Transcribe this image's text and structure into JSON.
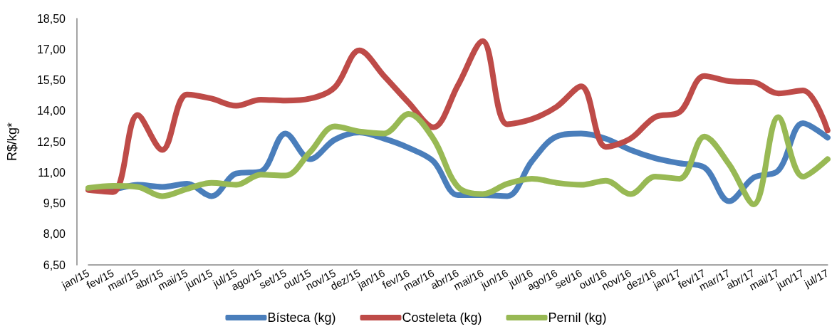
{
  "chart_data": {
    "type": "line",
    "ylabel": "R$/kg*",
    "categories": [
      "jan/15",
      "fev/15",
      "mar/15",
      "abr/15",
      "mai/15",
      "jun/15",
      "jul/15",
      "ago/15",
      "set/15",
      "out/15",
      "nov/15",
      "dez/15",
      "jan/16",
      "fev/16",
      "mar/16",
      "abr/16",
      "mai/16",
      "jun/16",
      "jul/16",
      "ago/16",
      "set/16",
      "out/16",
      "nov/16",
      "dez/16",
      "jan/17",
      "fev/17",
      "mar/17",
      "abr/17",
      "mai/17",
      "jun/17",
      "jul/17"
    ],
    "series": [
      {
        "name": "Bísteca (kg)",
        "color": "#4a7ebb",
        "values": [
          10.2,
          10.2,
          10.4,
          10.3,
          10.45,
          9.85,
          10.95,
          11.05,
          12.9,
          11.65,
          12.6,
          12.95,
          12.65,
          12.2,
          11.55,
          9.9,
          9.9,
          9.85,
          11.55,
          12.75,
          12.9,
          12.65,
          12.1,
          11.7,
          11.45,
          11.25,
          9.6,
          10.75,
          11.1,
          13.4,
          12.7
        ]
      },
      {
        "name": "Costeleta (kg)",
        "color": "#be4b48",
        "values": [
          10.15,
          10.05,
          13.8,
          12.1,
          14.8,
          14.6,
          14.25,
          14.55,
          14.5,
          14.6,
          15.15,
          16.95,
          15.7,
          14.4,
          13.2,
          15.25,
          17.4,
          13.35,
          13.6,
          14.2,
          15.2,
          12.25,
          12.65,
          13.7,
          13.95,
          15.7,
          15.45,
          15.4,
          14.85,
          15.0,
          13.05
        ]
      },
      {
        "name": "Pernil (kg)",
        "color": "#98b954",
        "values": [
          10.25,
          10.35,
          10.3,
          9.85,
          10.2,
          10.5,
          10.4,
          10.9,
          10.85,
          12.0,
          13.25,
          13.0,
          12.9,
          13.85,
          12.65,
          10.3,
          9.95,
          10.45,
          10.7,
          10.5,
          10.4,
          10.6,
          9.95,
          10.8,
          10.7,
          12.75,
          11.4,
          9.45,
          13.7,
          10.8,
          11.65
        ]
      }
    ],
    "ylim": [
      6.5,
      18.5
    ],
    "yticks": [
      {
        "value": 6.5,
        "label": "6,50"
      },
      {
        "value": 8,
        "label": "8,00"
      },
      {
        "value": 9.5,
        "label": "9,50"
      },
      {
        "value": 11,
        "label": "11,00"
      },
      {
        "value": 12.5,
        "label": "12,50"
      },
      {
        "value": 14,
        "label": "14,00"
      },
      {
        "value": 15.5,
        "label": "15,50"
      },
      {
        "value": 17,
        "label": "17,00"
      },
      {
        "value": 18.5,
        "label": "18,50"
      }
    ],
    "grid": false,
    "legend": "bottom",
    "marker": "none",
    "line_style": "solid"
  }
}
